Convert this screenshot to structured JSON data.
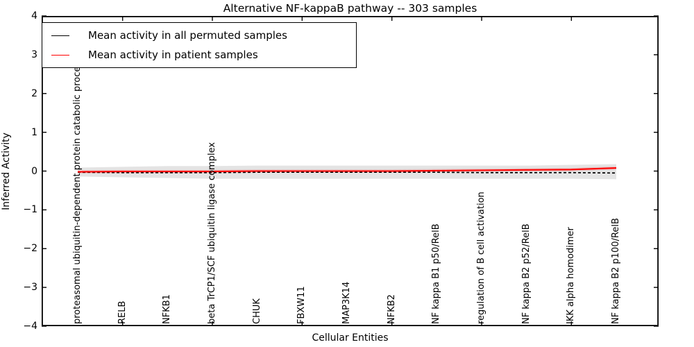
{
  "title": "Alternative NF-kappaB pathway -- 303 samples",
  "axes": {
    "x_label": "Cellular Entities",
    "y_label": "Inferred Activity"
  },
  "legend": {
    "items": [
      {
        "label": "Mean activity in all permuted samples",
        "color": "#000000"
      },
      {
        "label": "Mean activity in patient samples",
        "color": "#ff0000"
      }
    ]
  },
  "chart_data": {
    "type": "line",
    "title": "Alternative NF-kappaB pathway -- 303 samples",
    "xlabel": "Cellular Entities",
    "ylabel": "Inferred Activity",
    "ylim": [
      -4,
      4
    ],
    "ytick_values": [
      4,
      3,
      2,
      1,
      0,
      -1,
      -2,
      -3,
      -4
    ],
    "ytick_labels": [
      "4",
      "3",
      "2",
      "1",
      "0",
      "−1",
      "−2",
      "−3",
      "−4"
    ],
    "grid": false,
    "legend_position": "upper left",
    "categories": [
      "proteasomal ubiquitin-dependent protein catabolic process",
      "RELB",
      "NFKB1",
      "beta TrCP1/SCF ubiquitin ligase complex",
      "CHUK",
      "FBXW11",
      "MAP3K14",
      "NFKB2",
      "NF kappa B1 p50/RelB",
      "regulation of B cell activation",
      "NF kappa B2 p52/RelB",
      "IKK alpha homodimer",
      "NF kappa B2 p100/RelB"
    ],
    "series": [
      {
        "name": "Mean activity in all permuted samples",
        "color": "#000000",
        "style": "dashed",
        "values": [
          -0.03,
          -0.04,
          -0.04,
          -0.04,
          -0.03,
          -0.03,
          -0.03,
          -0.03,
          -0.03,
          -0.04,
          -0.04,
          -0.04,
          -0.05
        ]
      },
      {
        "name": "Mean activity in patient samples",
        "color": "#ff0000",
        "style": "solid",
        "values": [
          -0.02,
          -0.01,
          -0.01,
          -0.01,
          0.0,
          0.0,
          0.0,
          0.0,
          0.01,
          0.02,
          0.03,
          0.04,
          0.08
        ]
      }
    ],
    "bands": [
      {
        "name": "permuted-samples-range",
        "color": "#e4e4e4",
        "opacity": 1,
        "upper": [
          0.09,
          0.11,
          0.13,
          0.13,
          0.14,
          0.14,
          0.14,
          0.14,
          0.14,
          0.14,
          0.14,
          0.16,
          0.18
        ],
        "lower": [
          -0.14,
          -0.16,
          -0.18,
          -0.2,
          -0.2,
          -0.2,
          -0.2,
          -0.2,
          -0.2,
          -0.2,
          -0.2,
          -0.2,
          -0.21
        ]
      },
      {
        "name": "patient-samples-range",
        "color": "#ff0000",
        "opacity": 0.13,
        "upper": [
          0.025,
          0.035,
          0.035,
          0.035,
          0.045,
          0.045,
          0.045,
          0.045,
          0.055,
          0.065,
          0.075,
          0.085,
          0.125
        ],
        "lower": [
          -0.065,
          -0.055,
          -0.055,
          -0.055,
          -0.045,
          -0.045,
          -0.045,
          -0.045,
          -0.035,
          -0.025,
          -0.015,
          -0.005,
          0.035
        ]
      }
    ]
  }
}
